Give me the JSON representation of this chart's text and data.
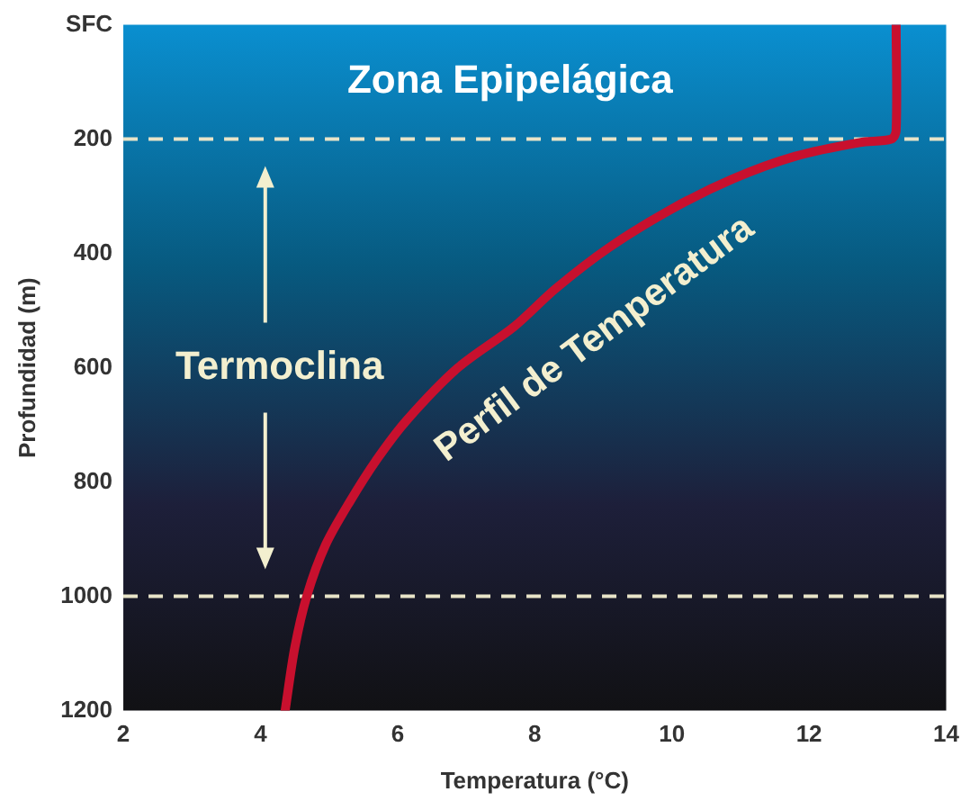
{
  "chart_data": {
    "type": "line",
    "xlabel": "Temperatura (°C)",
    "ylabel": "Profundidad (m)",
    "xlim": [
      2,
      14
    ],
    "xticks": [
      2,
      4,
      6,
      8,
      10,
      12,
      14
    ],
    "ylim": [
      1200,
      0
    ],
    "yticks": [
      {
        "value": 0,
        "label": "SFC"
      },
      200,
      400,
      600,
      800,
      1000,
      1200
    ],
    "grid": false,
    "legend": false,
    "marker": "none",
    "line_style": "solid",
    "series": [
      {
        "name": "Perfil de Temperatura",
        "color": "#c8102e",
        "x": [
          13.27,
          13.27,
          13.2,
          12.74,
          11.8,
          10.9,
          10.0,
          9.08,
          8.3,
          7.7,
          6.88,
          6.14,
          5.7,
          5.3,
          4.95,
          4.68,
          4.5,
          4.36
        ],
        "values": [
          0,
          185,
          200,
          206,
          230,
          269,
          322,
          390,
          462,
          528,
          600,
          691,
          760,
          835,
          910,
          998,
          1090,
          1200
        ]
      }
    ],
    "ref_lines": [
      {
        "axis": "y",
        "value": 200,
        "color": "#e8e4c8",
        "line_style": "dashed"
      },
      {
        "axis": "y",
        "value": 1000,
        "color": "#e8e4c8",
        "line_style": "dashed"
      }
    ],
    "annotations": [
      "Zona Epipelágica",
      "Termoclina"
    ]
  }
}
